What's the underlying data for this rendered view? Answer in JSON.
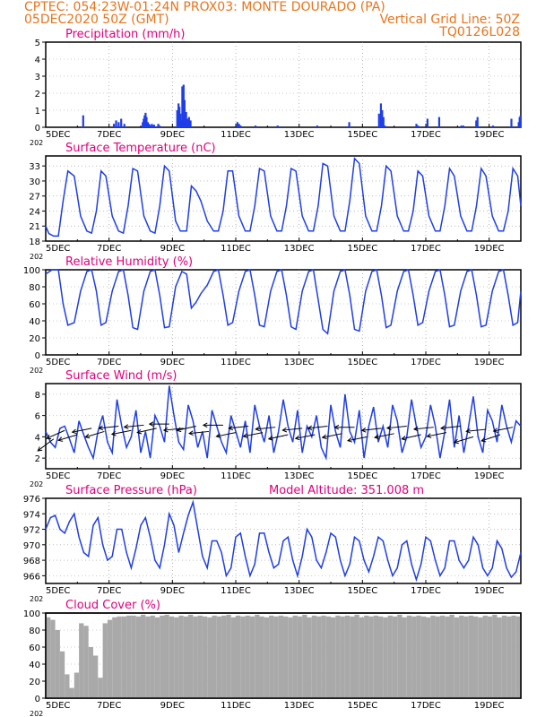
{
  "header": {
    "line1": "CPTEC:   054:23W-01:24N   PROX03: MONTE DOURADO (PA)",
    "line2_left": "05DEC2020 50Z (GMT)",
    "line2_right": "Vertical Grid Line: 50Z",
    "line3_right": "TQ0126L028"
  },
  "colors": {
    "header": "#e8741c",
    "title": "#e0007a",
    "series": "#1f3ee8",
    "cloud": "#a9a9a9",
    "bars": "#1f3ee8"
  },
  "x_axis": {
    "ticks": [
      "5DEC",
      "7DEC",
      "9DEC",
      "11DEC",
      "13DEC",
      "15DEC",
      "17DEC",
      "19DEC"
    ],
    "start_extra_label": "202",
    "range_days": [
      0,
      15
    ]
  },
  "chart_data": [
    {
      "id": "precipitation",
      "type": "bar",
      "title": "Precipitation (mm/h)",
      "ylim": [
        0,
        5
      ],
      "yticks": [
        0,
        1,
        2,
        3,
        4,
        5
      ],
      "x": [
        1.18,
        2.15,
        2.22,
        2.3,
        2.38,
        2.48,
        3.06,
        3.09,
        3.12,
        3.15,
        3.18,
        3.22,
        3.25,
        3.28,
        3.32,
        3.35,
        3.37,
        3.42,
        3.55,
        3.59,
        4.15,
        4.19,
        4.22,
        4.25,
        4.28,
        4.31,
        4.35,
        4.38,
        4.43,
        4.48,
        4.52,
        4.57,
        6.05,
        6.1,
        6.15,
        6.62,
        7.32,
        8.57,
        9.58,
        10.52,
        10.58,
        10.62,
        10.66,
        10.7,
        11.7,
        11.75,
        12.05,
        12.42,
        13.12,
        13.18,
        13.59,
        13.63,
        14.12,
        14.7,
        14.93,
        14.96,
        14.99
      ],
      "values": [
        0.7,
        0.2,
        0.4,
        0.3,
        0.5,
        0.2,
        0.3,
        0.5,
        0.7,
        0.85,
        0.6,
        0.3,
        0.2,
        0.15,
        0.1,
        0.2,
        0.1,
        0.15,
        0.2,
        0.1,
        1.0,
        1.4,
        1.2,
        0.8,
        0.4,
        2.4,
        2.5,
        1.6,
        0.9,
        0.5,
        0.6,
        0.4,
        0.3,
        0.2,
        0.1,
        0.1,
        0.1,
        0.1,
        0.3,
        0.8,
        1.4,
        1.0,
        0.6,
        0.1,
        0.2,
        0.1,
        0.5,
        0.6,
        0.1,
        0.1,
        0.4,
        0.6,
        0.1,
        0.5,
        0.3,
        0.6,
        0.7
      ]
    },
    {
      "id": "temperature",
      "type": "line",
      "title": "Surface Temperature (nC)",
      "ylim": [
        18,
        35
      ],
      "yticks": [
        18,
        21,
        24,
        27,
        30,
        33
      ],
      "x": [
        0,
        0.1,
        0.25,
        0.4,
        0.55,
        0.7,
        0.9,
        1.1,
        1.3,
        1.45,
        1.6,
        1.75,
        1.9,
        2.1,
        2.3,
        2.45,
        2.6,
        2.75,
        2.9,
        3.1,
        3.3,
        3.45,
        3.6,
        3.75,
        3.9,
        4.1,
        4.25,
        4.45,
        4.6,
        4.75,
        4.9,
        5.1,
        5.3,
        5.45,
        5.6,
        5.75,
        5.9,
        6.1,
        6.3,
        6.45,
        6.6,
        6.75,
        6.9,
        7.1,
        7.3,
        7.45,
        7.6,
        7.75,
        7.9,
        8.1,
        8.3,
        8.45,
        8.6,
        8.75,
        8.9,
        9.1,
        9.3,
        9.45,
        9.6,
        9.75,
        9.9,
        10.1,
        10.3,
        10.45,
        10.6,
        10.75,
        10.9,
        11.1,
        11.3,
        11.45,
        11.6,
        11.75,
        11.9,
        12.1,
        12.3,
        12.45,
        12.6,
        12.75,
        12.9,
        13.1,
        13.3,
        13.45,
        13.6,
        13.75,
        13.9,
        14.1,
        14.3,
        14.45,
        14.6,
        14.75,
        14.9,
        15
      ],
      "values": [
        21,
        19.5,
        19,
        19,
        26,
        32,
        31,
        23,
        20,
        19.6,
        24,
        32,
        31,
        23,
        20,
        19.6,
        25,
        32.5,
        32,
        23,
        20,
        19.6,
        25,
        33,
        32,
        22,
        20,
        20,
        29,
        28,
        26,
        22,
        20,
        20,
        24,
        32,
        32,
        23,
        20,
        20,
        25,
        32.5,
        32,
        23,
        20,
        20,
        25,
        32.5,
        32,
        23,
        20,
        20,
        25,
        33.5,
        33,
        23,
        20,
        20,
        26,
        34.5,
        33.5,
        23,
        20,
        20,
        25,
        33,
        32,
        23,
        20,
        20,
        24,
        32,
        31,
        23,
        20,
        20,
        25,
        32.5,
        31,
        23,
        20,
        20,
        25,
        32.5,
        31,
        23,
        20,
        20,
        24,
        32.5,
        31,
        25
      ]
    },
    {
      "id": "humidity",
      "type": "line",
      "title": "Relative Humidity (%)",
      "ylim": [
        0,
        100
      ],
      "yticks": [
        0,
        20,
        40,
        60,
        80,
        100
      ],
      "x": [
        0,
        0.2,
        0.4,
        0.55,
        0.7,
        0.9,
        1.1,
        1.3,
        1.45,
        1.6,
        1.75,
        1.9,
        2.1,
        2.3,
        2.45,
        2.6,
        2.75,
        2.9,
        3.1,
        3.3,
        3.45,
        3.6,
        3.75,
        3.9,
        4.1,
        4.3,
        4.45,
        4.6,
        4.75,
        4.9,
        5.1,
        5.3,
        5.45,
        5.6,
        5.75,
        5.9,
        6.1,
        6.3,
        6.45,
        6.6,
        6.75,
        6.9,
        7.1,
        7.3,
        7.45,
        7.6,
        7.75,
        7.9,
        8.1,
        8.3,
        8.45,
        8.6,
        8.75,
        8.9,
        9.1,
        9.3,
        9.45,
        9.6,
        9.75,
        9.9,
        10.1,
        10.3,
        10.45,
        10.6,
        10.75,
        10.9,
        11.1,
        11.3,
        11.45,
        11.6,
        11.75,
        11.9,
        12.1,
        12.3,
        12.45,
        12.6,
        12.75,
        12.9,
        13.1,
        13.3,
        13.45,
        13.6,
        13.75,
        13.9,
        14.1,
        14.3,
        14.45,
        14.6,
        14.75,
        14.9,
        15
      ],
      "values": [
        95,
        100,
        100,
        60,
        35,
        38,
        75,
        98,
        100,
        75,
        35,
        38,
        75,
        98,
        100,
        70,
        32,
        30,
        75,
        98,
        100,
        70,
        32,
        33,
        80,
        98,
        95,
        55,
        62,
        72,
        82,
        98,
        100,
        70,
        35,
        38,
        75,
        98,
        100,
        70,
        35,
        33,
        75,
        98,
        100,
        70,
        33,
        30,
        75,
        98,
        100,
        65,
        30,
        25,
        75,
        98,
        100,
        70,
        30,
        28,
        75,
        98,
        100,
        70,
        32,
        35,
        75,
        98,
        100,
        70,
        35,
        38,
        75,
        98,
        100,
        70,
        33,
        35,
        75,
        98,
        100,
        70,
        33,
        35,
        75,
        98,
        100,
        70,
        35,
        38,
        75
      ]
    },
    {
      "id": "wind",
      "type": "line",
      "title": "Surface Wind (m/s)",
      "ylim": [
        1,
        9
      ],
      "yticks": [
        2,
        4,
        6,
        8
      ],
      "x": [
        0,
        0.15,
        0.3,
        0.45,
        0.6,
        0.75,
        0.9,
        1.05,
        1.2,
        1.35,
        1.5,
        1.65,
        1.8,
        1.95,
        2.1,
        2.25,
        2.4,
        2.55,
        2.7,
        2.85,
        3,
        3.15,
        3.3,
        3.45,
        3.6,
        3.75,
        3.9,
        4.05,
        4.2,
        4.35,
        4.5,
        4.65,
        4.8,
        4.95,
        5.1,
        5.25,
        5.4,
        5.55,
        5.7,
        5.85,
        6,
        6.15,
        6.3,
        6.45,
        6.6,
        6.75,
        6.9,
        7.05,
        7.2,
        7.35,
        7.5,
        7.65,
        7.8,
        7.95,
        8.1,
        8.25,
        8.4,
        8.55,
        8.7,
        8.85,
        9,
        9.15,
        9.3,
        9.45,
        9.6,
        9.75,
        9.9,
        10.05,
        10.2,
        10.35,
        10.5,
        10.65,
        10.8,
        10.95,
        11.1,
        11.25,
        11.4,
        11.55,
        11.7,
        11.85,
        12,
        12.15,
        12.3,
        12.45,
        12.6,
        12.75,
        12.9,
        13.05,
        13.2,
        13.35,
        13.5,
        13.65,
        13.8,
        13.95,
        14.1,
        14.25,
        14.4,
        14.55,
        14.7,
        14.85,
        15
      ],
      "values": [
        4.5,
        3.5,
        3.0,
        4.8,
        5.0,
        3.8,
        2.5,
        5.5,
        4.2,
        3.0,
        2.0,
        4.5,
        6.0,
        3.5,
        2.5,
        7.5,
        5.0,
        3.0,
        4.0,
        6.5,
        2.5,
        4.5,
        2.0,
        6.0,
        5.0,
        3.5,
        8.8,
        6.0,
        3.5,
        2.8,
        7.0,
        5.5,
        3.0,
        4.5,
        2.0,
        6.5,
        5.0,
        3.5,
        2.5,
        6.0,
        4.5,
        3.0,
        5.5,
        2.5,
        7.0,
        5.0,
        3.5,
        6.0,
        2.5,
        4.5,
        7.5,
        5.0,
        3.5,
        6.5,
        2.5,
        5.0,
        4.0,
        6.0,
        3.0,
        2.0,
        7.0,
        4.5,
        3.0,
        8.0,
        4.5,
        3.5,
        6.5,
        2.0,
        5.0,
        6.8,
        3.5,
        5.0,
        3.0,
        7.0,
        5.5,
        2.5,
        4.0,
        7.5,
        5.0,
        3.0,
        4.0,
        7.0,
        5.0,
        2.0,
        4.5,
        7.5,
        3.0,
        6.0,
        2.5,
        5.0,
        7.8,
        4.0,
        2.5,
        6.5,
        5.5,
        3.5,
        7.0,
        5.0,
        3.5,
        5.5,
        5.0
      ],
      "vectors": {
        "x": [
          0.25,
          0.6,
          1.0,
          1.45,
          1.85,
          2.3,
          2.7,
          3.1,
          3.5,
          3.9,
          4.35,
          4.75,
          5.15,
          5.6,
          6.0,
          6.4,
          6.85,
          7.25,
          7.65,
          8.1,
          8.5,
          8.9,
          9.35,
          9.75,
          10.15,
          10.6,
          11.0,
          11.4,
          11.85,
          12.25,
          12.65,
          13.1,
          13.5,
          13.9,
          14.35,
          14.75
        ],
        "y": [
          3.8,
          4.6,
          4.2,
          4.8,
          4.5,
          5.0,
          4.6,
          5.1,
          4.8,
          5.2,
          4.8,
          5.0,
          4.5,
          5.1,
          4.4,
          5.0,
          4.4,
          4.9,
          4.2,
          4.8,
          4.2,
          5.0,
          4.3,
          4.9,
          4.0,
          4.8,
          4.3,
          5.0,
          4.2,
          4.9,
          4.4,
          5.0,
          4.0,
          4.7,
          4.2,
          4.9
        ],
        "u": [
          -0.8,
          -0.9,
          -1.0,
          -1.0,
          -1.0,
          -0.9,
          -1.0,
          -1.0,
          -0.9,
          -1.0,
          -1.0,
          -0.9,
          -1.0,
          -1.0,
          -1.0,
          -0.9,
          -1.0,
          -1.0,
          -0.9,
          -1.0,
          -1.0,
          -0.9,
          -1.0,
          -1.0,
          -1.0,
          -0.9,
          -1.0,
          -1.0,
          -0.9,
          -1.0,
          -1.0,
          -0.9,
          -1.0,
          -1.0,
          -0.9,
          -1.0
        ],
        "v": [
          -0.6,
          -0.4,
          -0.3,
          -0.2,
          -0.3,
          -0.1,
          -0.2,
          -0.1,
          -0.2,
          0.0,
          -0.1,
          -0.2,
          -0.1,
          0.0,
          -0.2,
          -0.1,
          -0.2,
          -0.1,
          -0.2,
          -0.1,
          -0.2,
          -0.1,
          -0.2,
          0.0,
          -0.2,
          -0.1,
          -0.2,
          -0.1,
          -0.2,
          -0.1,
          -0.2,
          -0.1,
          -0.3,
          -0.1,
          -0.3,
          -0.2
        ]
      }
    },
    {
      "id": "pressure",
      "type": "line",
      "title": "Surface Pressure (hPa)",
      "extra_label": "Model Altitude: 351.008 m",
      "ylim": [
        965,
        976
      ],
      "yticks": [
        966,
        968,
        970,
        972,
        974,
        976
      ],
      "x": [
        0,
        0.15,
        0.3,
        0.45,
        0.6,
        0.75,
        0.9,
        1.05,
        1.2,
        1.35,
        1.5,
        1.65,
        1.8,
        1.95,
        2.1,
        2.25,
        2.4,
        2.55,
        2.7,
        2.85,
        3,
        3.15,
        3.3,
        3.45,
        3.6,
        3.75,
        3.9,
        4.05,
        4.2,
        4.35,
        4.5,
        4.65,
        4.8,
        4.95,
        5.1,
        5.25,
        5.4,
        5.55,
        5.7,
        5.85,
        6,
        6.15,
        6.3,
        6.45,
        6.6,
        6.75,
        6.9,
        7.05,
        7.2,
        7.35,
        7.5,
        7.65,
        7.8,
        7.95,
        8.1,
        8.25,
        8.4,
        8.55,
        8.7,
        8.85,
        9,
        9.15,
        9.3,
        9.45,
        9.6,
        9.75,
        9.9,
        10.05,
        10.2,
        10.35,
        10.5,
        10.65,
        10.8,
        10.95,
        11.1,
        11.25,
        11.4,
        11.55,
        11.7,
        11.85,
        12,
        12.15,
        12.3,
        12.45,
        12.6,
        12.75,
        12.9,
        13.05,
        13.2,
        13.35,
        13.5,
        13.65,
        13.8,
        13.95,
        14.1,
        14.25,
        14.4,
        14.55,
        14.7,
        14.85,
        15
      ],
      "values": [
        972.0,
        973.5,
        973.8,
        972.0,
        971.5,
        973.0,
        974.0,
        971.0,
        969.0,
        968.5,
        972.5,
        973.5,
        970.0,
        968.0,
        968.5,
        972.0,
        972.0,
        969.0,
        967.0,
        969.5,
        972.5,
        973.5,
        971.0,
        968.0,
        967.0,
        970.0,
        974.0,
        972.5,
        969.0,
        971.5,
        973.8,
        975.5,
        972.0,
        968.5,
        967.0,
        970.5,
        970.5,
        969.0,
        966.0,
        967.0,
        971.0,
        971.5,
        968.5,
        966.0,
        967.5,
        971.5,
        971.5,
        969.0,
        967.0,
        967.5,
        970.5,
        971.0,
        968.0,
        966.0,
        968.5,
        972.0,
        971.0,
        968.0,
        967.0,
        969.0,
        971.5,
        971.0,
        968.0,
        966.0,
        967.5,
        971.0,
        970.5,
        968.0,
        966.5,
        968.5,
        971.0,
        970.5,
        968.0,
        966.0,
        967.0,
        970.0,
        970.5,
        967.5,
        965.5,
        967.5,
        971.0,
        970.5,
        968.0,
        966.0,
        967.0,
        970.5,
        970.5,
        968.0,
        967.0,
        968.0,
        971.0,
        970.0,
        967.0,
        966.0,
        967.0,
        970.5,
        969.5,
        967.0,
        965.8,
        966.5,
        969.0
      ]
    },
    {
      "id": "cloud",
      "type": "area",
      "title": "Cloud Cover (%)",
      "ylim": [
        0,
        100
      ],
      "yticks": [
        0,
        20,
        40,
        60,
        80,
        100
      ],
      "x": [
        0,
        0.15,
        0.3,
        0.45,
        0.6,
        0.75,
        0.9,
        1.05,
        1.2,
        1.35,
        1.5,
        1.65,
        1.8,
        1.95,
        2.1,
        2.25,
        2.4,
        2.55,
        2.7,
        2.85,
        3,
        3.15,
        3.3,
        3.45,
        3.6,
        3.75,
        3.9,
        4.05,
        4.2,
        4.35,
        4.5,
        4.65,
        4.8,
        4.95,
        5.1,
        5.25,
        5.4,
        5.55,
        5.7,
        5.85,
        6,
        6.15,
        6.3,
        6.45,
        6.6,
        6.75,
        6.9,
        7.05,
        7.2,
        7.35,
        7.5,
        7.65,
        7.8,
        7.95,
        8.1,
        8.25,
        8.4,
        8.55,
        8.7,
        8.85,
        9,
        9.15,
        9.3,
        9.45,
        9.6,
        9.75,
        9.9,
        10.05,
        10.2,
        10.35,
        10.5,
        10.65,
        10.8,
        10.95,
        11.1,
        11.25,
        11.4,
        11.55,
        11.7,
        11.85,
        12,
        12.15,
        12.3,
        12.45,
        12.6,
        12.75,
        12.9,
        13.05,
        13.2,
        13.35,
        13.5,
        13.65,
        13.8,
        13.95,
        14.1,
        14.25,
        14.4,
        14.55,
        14.7,
        14.85,
        15
      ],
      "values": [
        95,
        92,
        80,
        55,
        28,
        12,
        30,
        88,
        85,
        60,
        50,
        24,
        88,
        92,
        95,
        96,
        96,
        97,
        97,
        96,
        98,
        96,
        97,
        95,
        97,
        98,
        96,
        95,
        97,
        96,
        98,
        96,
        97,
        96,
        95,
        97,
        96,
        97,
        98,
        95,
        97,
        96,
        97,
        96,
        98,
        96,
        95,
        97,
        96,
        97,
        96,
        95,
        97,
        96,
        98,
        95,
        97,
        96,
        97,
        96,
        95,
        97,
        96,
        97,
        96,
        98,
        95,
        97,
        96,
        97,
        96,
        95,
        97,
        96,
        98,
        95,
        97,
        96,
        97,
        96,
        95,
        97,
        96,
        97,
        96,
        98,
        95,
        97,
        96,
        97,
        96,
        95,
        97,
        96,
        98,
        95,
        97,
        96,
        97,
        96,
        96
      ]
    }
  ]
}
